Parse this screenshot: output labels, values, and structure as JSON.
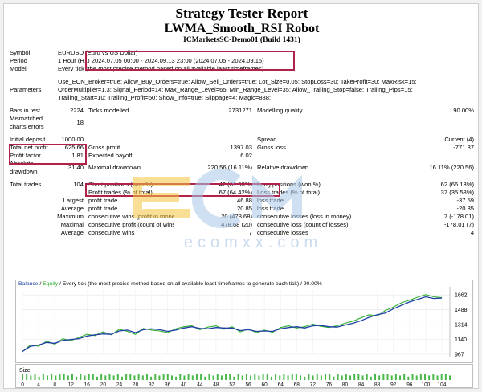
{
  "header": {
    "title": "Strategy Tester Report",
    "robot": "LWMA_Smooth_RSI Robot",
    "server": "ICMarketsSC-Demo01 (Build 1431)"
  },
  "settings": {
    "symbol_label": "Symbol",
    "symbol_value": "EURUSD (Euro vs US Dollar)",
    "period_label": "Period",
    "period_value": "1 Hour (H1) 2024.07.05 00:00 - 2024.09.13 23:00 (2024.07.05 - 2024.09.15)",
    "model_label": "Model",
    "model_value": "Every tick (the most precise method based on all available least timeframes)",
    "parameters_label": "Parameters",
    "parameters_line1": "Use_ECN_Broker=true; Allow_Buy_Orders=true; Allow_Sell_Orders=true; Lot_Size=0.05; StopLoss=30; TakeProfit=30; MaxRisk=15;",
    "parameters_line2": "OrderMultiplier=1.3; Signal_Period=14; Max_Range_Level=65; Min_Range_Level=35; Allow_Trailing_Stop=false; Trailing_Pips=15;",
    "parameters_line3": "Trailing_Start=10; Trailing_Profit=50; Show_Info=true; Slippage=4; Magic=888;"
  },
  "stats": {
    "bars_label": "Bars in test",
    "bars_value": "2224",
    "ticks_label": "Ticks modelled",
    "ticks_value": "2731271",
    "quality_label": "Modelling quality",
    "quality_value": "90.00%",
    "mismatch_label1": "Mismatched",
    "mismatch_label2": "charts errors",
    "mismatch_value": "18",
    "deposit_label": "Initial deposit",
    "deposit_value": "1000.00",
    "spread_label": "Spread",
    "spread_value": "Current (4)",
    "net_label": "Total net profit",
    "net_value": "625.66",
    "gross_profit_label": "Gross profit",
    "gross_profit_value": "1397.03",
    "gross_loss_label": "Gross loss",
    "gross_loss_value": "-771.37",
    "pf_label": "Profit factor",
    "pf_value": "1.81",
    "payoff_label": "Expected payoff",
    "payoff_value": "6.02",
    "abs_dd_label1": "Absolute",
    "abs_dd_label2": "drawdown",
    "abs_dd_value": "31.40",
    "max_dd_label": "Maximal drawdown",
    "max_dd_value": "220.56 (16.11%)",
    "rel_dd_label": "Relative drawdown",
    "rel_dd_value": "16.11% (220.56)",
    "trades_label": "Total trades",
    "trades_value": "104",
    "short_label": "Short positions (won %)",
    "short_value": "42 (61.90%)",
    "long_label": "Long positions (won %)",
    "long_value": "62 (66.13%)",
    "pt_label": "Profit trades (% of total)",
    "pt_value": "67 (64.42%)",
    "lt_label": "Loss trades (% of total)",
    "lt_value": "37 (35.58%)",
    "largest_label": "Largest",
    "largest_pt_label": "profit trade",
    "largest_pt_value": "46.88",
    "largest_lt_label": "loss trade",
    "largest_lt_value": "-37.59",
    "average_label": "Average",
    "average_pt_label": "profit trade",
    "average_pt_value": "20.85",
    "average_lt_label": "loss trade",
    "average_lt_value": "-20.85",
    "maximum_label": "Maximum",
    "max_cw_label": "consecutive wins (profit in money)",
    "max_cw_value": "20 (478.68)",
    "max_cl_label": "consecutive losses (loss in money)",
    "max_cl_value": "7 (-178.01)",
    "maximal_label": "Maximal",
    "mxl_cp_label": "consecutive profit (count of wins)",
    "mxl_cp_value": "478.68 (20)",
    "mxl_cl_label": "consecutive loss (count of losses)",
    "mxl_cl_value": "-178.01 (7)",
    "avg_label": "Average",
    "avg_cw_label": "consecutive wins",
    "avg_cw_value": "7",
    "avg_cl_label": "consecutive losses",
    "avg_cl_value": "4"
  },
  "watermark": {
    "brand": "ecomxx.com"
  },
  "chart_data": {
    "type": "line",
    "legend_balance": "Balance",
    "legend_sep": " / ",
    "legend_equity": "Equity",
    "legend_rest": " / Every tick (the most precise method based on all available least timeframes to generate each tick) / 90.00%",
    "size_label": "Size",
    "y_ticks": [
      "1662",
      "1488",
      "1314",
      "1140",
      "967"
    ],
    "x_ticks": [
      "0",
      "4",
      "8",
      "12",
      "16",
      "20",
      "24",
      "28",
      "32",
      "36",
      "40",
      "44",
      "48",
      "52",
      "56",
      "60",
      "64",
      "68",
      "72",
      "76",
      "80",
      "84",
      "88",
      "92",
      "96",
      "100",
      "104"
    ],
    "ylim": [
      967,
      1720
    ],
    "xlim": [
      0,
      106
    ],
    "colors": {
      "balance": "#1f3fa6",
      "equity": "#2fae2f",
      "size": "#49b849",
      "text_balance": "#1f3fa6",
      "text_equity": "#2fae2f"
    },
    "series": [
      {
        "name": "Balance",
        "x": [
          0,
          2,
          4,
          6,
          8,
          10,
          12,
          14,
          16,
          18,
          20,
          22,
          24,
          26,
          28,
          30,
          32,
          34,
          36,
          38,
          40,
          42,
          44,
          46,
          48,
          50,
          52,
          54,
          56,
          58,
          60,
          62,
          64,
          66,
          68,
          70,
          72,
          74,
          76,
          78,
          80,
          82,
          84,
          86,
          88,
          90,
          92,
          94,
          96,
          98,
          100,
          102,
          104
        ],
        "y": [
          1000,
          1060,
          1075,
          1105,
          1095,
          1130,
          1140,
          1150,
          1180,
          1195,
          1205,
          1200,
          1240,
          1250,
          1220,
          1255,
          1265,
          1255,
          1235,
          1250,
          1275,
          1290,
          1270,
          1265,
          1280,
          1275,
          1275,
          1245,
          1255,
          1235,
          1240,
          1235,
          1265,
          1280,
          1290,
          1275,
          1300,
          1305,
          1290,
          1285,
          1310,
          1330,
          1360,
          1400,
          1430,
          1450,
          1500,
          1540,
          1580,
          1610,
          1640,
          1620,
          1625
        ]
      },
      {
        "name": "Equity",
        "x": [
          0,
          2,
          4,
          6,
          8,
          10,
          12,
          14,
          16,
          18,
          20,
          22,
          24,
          26,
          28,
          30,
          32,
          34,
          36,
          38,
          40,
          42,
          44,
          46,
          48,
          50,
          52,
          54,
          56,
          58,
          60,
          62,
          64,
          66,
          68,
          70,
          72,
          74,
          76,
          78,
          80,
          82,
          84,
          86,
          88,
          90,
          92,
          94,
          96,
          98,
          100,
          102,
          104
        ],
        "y": [
          1000,
          1075,
          1060,
          1120,
          1085,
          1150,
          1125,
          1165,
          1200,
          1185,
          1230,
          1195,
          1260,
          1235,
          1200,
          1270,
          1250,
          1240,
          1220,
          1265,
          1290,
          1300,
          1255,
          1285,
          1300,
          1260,
          1290,
          1230,
          1265,
          1220,
          1250,
          1225,
          1280,
          1300,
          1275,
          1290,
          1320,
          1295,
          1280,
          1300,
          1330,
          1355,
          1395,
          1430,
          1415,
          1480,
          1520,
          1570,
          1600,
          1635,
          1665,
          1640,
          1630
        ]
      }
    ],
    "sizes": [
      5,
      5,
      4,
      5,
      3,
      5,
      4,
      5,
      4,
      5,
      5,
      4,
      5,
      3,
      5,
      4,
      5,
      5,
      3,
      5,
      4,
      5,
      4,
      5,
      3,
      5,
      5,
      4,
      5,
      4,
      5,
      3,
      5,
      4,
      5,
      5,
      4,
      3,
      5,
      4,
      5,
      4,
      5,
      5,
      3,
      5,
      4,
      5,
      4,
      5,
      5,
      3,
      5,
      4,
      5,
      4,
      5,
      4,
      5,
      5,
      3,
      5,
      4,
      5,
      4,
      5,
      5,
      4,
      3,
      5,
      4,
      5,
      4,
      5,
      5,
      3,
      5,
      4,
      5,
      4,
      5,
      5,
      4,
      5,
      3,
      5,
      4,
      5,
      5,
      4,
      5,
      4,
      5,
      3,
      5,
      4,
      5,
      5,
      4,
      5,
      4,
      5,
      5,
      4
    ]
  }
}
